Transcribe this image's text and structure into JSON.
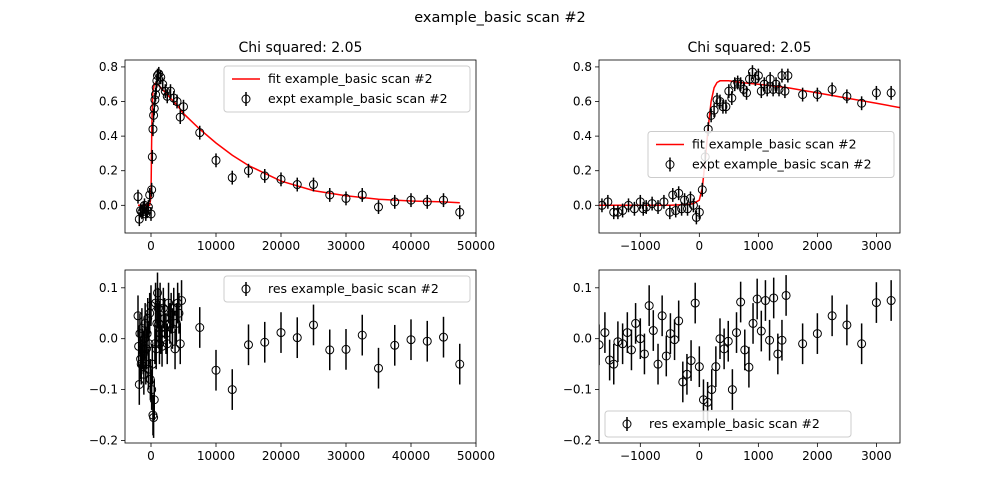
{
  "figure": {
    "suptitle": "example_basic scan #2"
  },
  "chart_data": [
    {
      "id": "top-left",
      "type": "scatter",
      "title": "Chi squared:  2.05",
      "xlim": [
        -4000,
        50000
      ],
      "ylim": [
        -0.16,
        0.84
      ],
      "xticks": [
        0,
        10000,
        20000,
        30000,
        40000,
        50000
      ],
      "xtick_labels": [
        "0",
        "10000",
        "20000",
        "30000",
        "40000",
        "50000"
      ],
      "yticks": [
        0.0,
        0.2,
        0.4,
        0.6,
        0.8
      ],
      "ytick_labels": [
        "0.0",
        "0.2",
        "0.4",
        "0.6",
        "0.8"
      ],
      "legend": {
        "position": "top-right",
        "entries": [
          "fit example_basic scan #2",
          "expt example_basic scan #2"
        ]
      },
      "fit": {
        "name": "fit example_basic scan #2",
        "color": "#ff0000",
        "x": [
          -2000,
          -200,
          0,
          60,
          120,
          200,
          300,
          500,
          800,
          1000,
          1500,
          2000,
          3000,
          4000,
          5000,
          7500,
          10000,
          12500,
          15000,
          20000,
          25000,
          30000,
          35000,
          40000,
          45000,
          47500
        ],
        "y": [
          0.0,
          0.0,
          0.05,
          0.25,
          0.45,
          0.58,
          0.66,
          0.7,
          0.71,
          0.7,
          0.68,
          0.66,
          0.62,
          0.58,
          0.53,
          0.44,
          0.36,
          0.29,
          0.23,
          0.14,
          0.085,
          0.055,
          0.035,
          0.025,
          0.02,
          0.015
        ]
      },
      "expt": {
        "name": "expt example_basic scan #2",
        "color": "#000000",
        "x": [
          -2000,
          -1800,
          -1600,
          -1400,
          -1200,
          -1000,
          -800,
          -600,
          -400,
          -200,
          0,
          100,
          200,
          300,
          400,
          500,
          600,
          700,
          800,
          900,
          1000,
          1200,
          1500,
          1800,
          2200,
          2500,
          3000,
          3500,
          4000,
          4500,
          5000,
          7500,
          10000,
          12500,
          15000,
          17500,
          20000,
          22500,
          25000,
          27500,
          30000,
          32500,
          35000,
          37500,
          40000,
          42500,
          45000,
          47500
        ],
        "y": [
          0.05,
          -0.08,
          -0.03,
          -0.04,
          -0.02,
          0.0,
          -0.05,
          -0.03,
          -0.01,
          0.06,
          -0.05,
          0.09,
          0.28,
          0.44,
          0.52,
          0.56,
          0.61,
          0.64,
          0.68,
          0.72,
          0.75,
          0.76,
          0.74,
          0.7,
          0.66,
          0.63,
          0.66,
          0.62,
          0.6,
          0.51,
          0.57,
          0.42,
          0.26,
          0.16,
          0.2,
          0.17,
          0.15,
          0.12,
          0.12,
          0.06,
          0.04,
          0.06,
          -0.01,
          0.02,
          0.03,
          0.02,
          0.03,
          -0.04
        ],
        "yerr": 0.04
      }
    },
    {
      "id": "top-right",
      "type": "scatter",
      "title": "Chi squared:  2.05",
      "xlim": [
        -1700,
        3400
      ],
      "ylim": [
        -0.16,
        0.84
      ],
      "xticks": [
        -1000,
        0,
        1000,
        2000,
        3000
      ],
      "xtick_labels": [
        "−1000",
        "0",
        "1000",
        "2000",
        "3000"
      ],
      "yticks": [
        0.0,
        0.2,
        0.4,
        0.6,
        0.8
      ],
      "ytick_labels": [
        "0.0",
        "0.2",
        "0.4",
        "0.6",
        "0.8"
      ],
      "legend": {
        "position": "center-right",
        "entries": [
          "fit example_basic scan #2",
          "expt example_basic scan #2"
        ]
      },
      "fit": {
        "name": "fit example_basic scan #2",
        "color": "#ff0000",
        "x": [
          -1700,
          -500,
          -200,
          -100,
          0,
          50,
          100,
          150,
          200,
          250,
          300,
          350,
          400,
          500,
          700,
          1000,
          1500,
          2000,
          2500,
          3000,
          3400
        ],
        "y": [
          0.0,
          0.0,
          0.005,
          0.01,
          0.03,
          0.1,
          0.26,
          0.45,
          0.6,
          0.68,
          0.71,
          0.72,
          0.72,
          0.72,
          0.71,
          0.7,
          0.68,
          0.65,
          0.62,
          0.59,
          0.565
        ]
      },
      "expt": {
        "name": "expt example_basic scan #2",
        "color": "#000000",
        "x": [
          -1650,
          -1550,
          -1450,
          -1380,
          -1300,
          -1200,
          -1100,
          -1000,
          -950,
          -900,
          -800,
          -700,
          -600,
          -500,
          -450,
          -400,
          -350,
          -300,
          -250,
          -200,
          -150,
          -100,
          -50,
          0,
          50,
          100,
          150,
          200,
          250,
          300,
          350,
          400,
          450,
          500,
          550,
          600,
          650,
          700,
          750,
          800,
          850,
          900,
          950,
          1000,
          1050,
          1100,
          1150,
          1200,
          1250,
          1300,
          1350,
          1400,
          1450,
          1500,
          1750,
          2000,
          2250,
          2500,
          2750,
          3000,
          3250
        ],
        "y": [
          0.0,
          0.02,
          -0.04,
          -0.04,
          -0.03,
          0.0,
          -0.02,
          0.02,
          -0.02,
          -0.01,
          0.01,
          -0.01,
          0.02,
          -0.04,
          0.06,
          -0.03,
          0.07,
          -0.02,
          0.03,
          -0.02,
          0.04,
          0.0,
          -0.07,
          -0.04,
          0.09,
          0.28,
          0.44,
          0.52,
          0.55,
          0.61,
          0.6,
          0.57,
          0.57,
          0.66,
          0.62,
          0.7,
          0.71,
          0.7,
          0.67,
          0.65,
          0.73,
          0.77,
          0.73,
          0.75,
          0.66,
          0.7,
          0.67,
          0.73,
          0.67,
          0.7,
          0.67,
          0.75,
          0.66,
          0.75,
          0.64,
          0.64,
          0.67,
          0.63,
          0.59,
          0.65,
          0.65
        ],
        "yerr": 0.04
      }
    },
    {
      "id": "bottom-left",
      "type": "scatter",
      "title": "",
      "xlim": [
        -4000,
        50000
      ],
      "ylim": [
        -0.205,
        0.135
      ],
      "xticks": [
        0,
        10000,
        20000,
        30000,
        40000,
        50000
      ],
      "xtick_labels": [
        "0",
        "10000",
        "20000",
        "30000",
        "40000",
        "50000"
      ],
      "yticks": [
        -0.2,
        -0.1,
        0.0,
        0.1
      ],
      "ytick_labels": [
        "−0.2",
        "−0.1",
        "0.0",
        "0.1"
      ],
      "legend": {
        "position": "top-right",
        "entries": [
          "res example_basic scan #2"
        ]
      },
      "res": {
        "name": "res example_basic scan #2",
        "color": "#000000",
        "x": [
          -2000,
          -1900,
          -1800,
          -1700,
          -1600,
          -1500,
          -1400,
          -1300,
          -1200,
          -1100,
          -1000,
          -900,
          -800,
          -700,
          -600,
          -500,
          -400,
          -300,
          -200,
          -100,
          0,
          100,
          200,
          300,
          400,
          500,
          600,
          700,
          800,
          900,
          1000,
          1100,
          1200,
          1300,
          1400,
          1500,
          1700,
          1900,
          2100,
          2300,
          2500,
          2700,
          2900,
          3100,
          3300,
          3500,
          3700,
          3900,
          4100,
          4300,
          4500,
          4700,
          7500,
          10000,
          12500,
          15000,
          17500,
          20000,
          22500,
          25000,
          27500,
          30000,
          32500,
          35000,
          37500,
          40000,
          42500,
          45000,
          47500
        ],
        "y": [
          0.045,
          -0.015,
          -0.09,
          0.01,
          -0.04,
          -0.05,
          0.02,
          -0.02,
          -0.03,
          -0.07,
          0.0,
          0.03,
          -0.05,
          -0.02,
          0.01,
          0.04,
          -0.06,
          -0.01,
          0.05,
          -0.08,
          0.065,
          -0.1,
          -0.05,
          -0.15,
          -0.155,
          -0.12,
          -0.01,
          0.07,
          -0.02,
          0.03,
          0.09,
          0.06,
          0.03,
          -0.01,
          0.07,
          0.01,
          -0.015,
          0.06,
          0.04,
          0.01,
          -0.01,
          0.07,
          0.03,
          0.05,
          0.02,
          0.06,
          -0.02,
          0.03,
          0.07,
          0.05,
          -0.01,
          0.075,
          0.022,
          -0.062,
          -0.1,
          -0.012,
          -0.007,
          0.012,
          0.002,
          0.027,
          -0.022,
          -0.021,
          0.007,
          -0.058,
          -0.013,
          -0.002,
          -0.005,
          0.003,
          -0.05
        ],
        "yerr": 0.04
      }
    },
    {
      "id": "bottom-right",
      "type": "scatter",
      "title": "",
      "xlim": [
        -1700,
        3400
      ],
      "ylim": [
        -0.205,
        0.135
      ],
      "xticks": [
        -1000,
        0,
        1000,
        2000,
        3000
      ],
      "xtick_labels": [
        "−1000",
        "0",
        "1000",
        "2000",
        "3000"
      ],
      "yticks": [
        -0.2,
        -0.1,
        0.0,
        0.1
      ],
      "ytick_labels": [
        "−0.2",
        "−0.1",
        "0.0",
        "0.1"
      ],
      "legend": {
        "position": "bottom-left",
        "entries": [
          "res example_basic scan #2"
        ]
      },
      "res": {
        "name": "res example_basic scan #2",
        "color": "#000000",
        "x": [
          -1700,
          -1600,
          -1520,
          -1450,
          -1380,
          -1300,
          -1220,
          -1150,
          -1080,
          -1000,
          -930,
          -850,
          -780,
          -700,
          -630,
          -560,
          -490,
          -420,
          -350,
          -280,
          -210,
          -140,
          -70,
          0,
          70,
          140,
          210,
          280,
          350,
          420,
          490,
          560,
          630,
          700,
          770,
          840,
          910,
          980,
          1050,
          1120,
          1190,
          1260,
          1330,
          1400,
          1470,
          1750,
          2000,
          2250,
          2500,
          2750,
          3000,
          3250
        ],
        "y": [
          -0.012,
          0.012,
          -0.042,
          -0.05,
          -0.006,
          -0.01,
          0.012,
          -0.022,
          0.03,
          0.0,
          -0.03,
          0.065,
          0.016,
          -0.05,
          0.045,
          -0.034,
          0.01,
          -0.002,
          0.035,
          -0.085,
          -0.07,
          -0.043,
          0.07,
          -0.055,
          -0.12,
          -0.125,
          -0.1,
          -0.055,
          0.0,
          -0.02,
          -0.005,
          -0.1,
          0.012,
          0.072,
          -0.022,
          -0.056,
          0.03,
          0.078,
          0.015,
          0.075,
          -0.003,
          0.08,
          -0.03,
          -0.003,
          0.085,
          -0.01,
          0.01,
          0.045,
          0.027,
          -0.01,
          0.071,
          0.075
        ],
        "yerr": 0.04
      }
    }
  ]
}
